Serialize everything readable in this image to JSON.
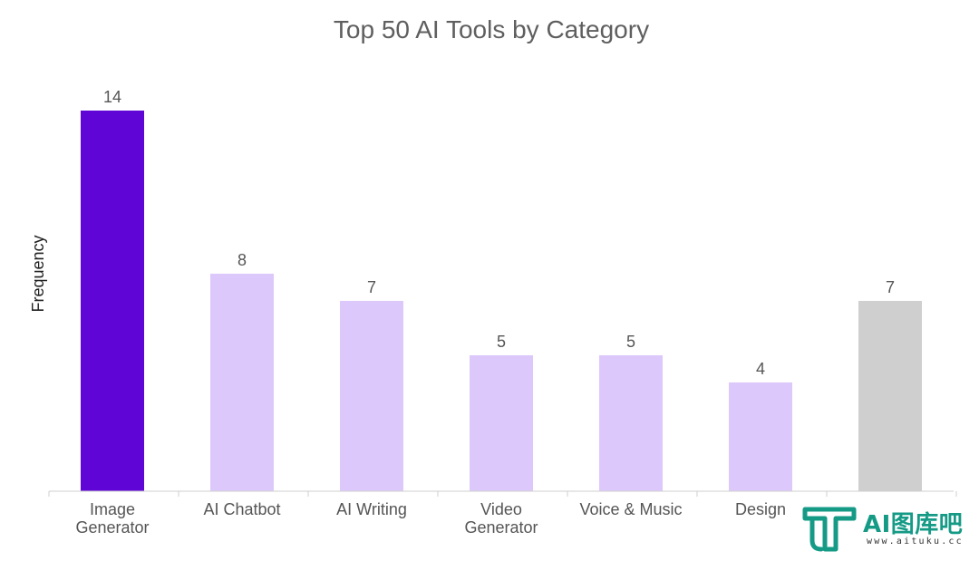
{
  "chart_data": {
    "type": "bar",
    "title": "Top 50 AI Tools by Category",
    "xlabel": "",
    "ylabel": "Frequency",
    "ylim": [
      0,
      14
    ],
    "grid": false,
    "legend": "none",
    "categories": [
      [
        "Image",
        "Generator"
      ],
      [
        "AI Chatbot"
      ],
      [
        "AI Writing"
      ],
      [
        "Video",
        "Generator"
      ],
      [
        "Voice & Music"
      ],
      [
        "Design"
      ],
      [
        ""
      ]
    ],
    "values": [
      14,
      8,
      7,
      5,
      5,
      4,
      7
    ],
    "bar_colors": [
      "#5f06d6",
      "#dcc8fb",
      "#dcc8fb",
      "#dcc8fb",
      "#dcc8fb",
      "#dcc8fb",
      "#d0cfd0"
    ]
  },
  "watermark": {
    "brand": "AI图库吧",
    "url": "www.aituku.cc",
    "color": "#159a86"
  }
}
